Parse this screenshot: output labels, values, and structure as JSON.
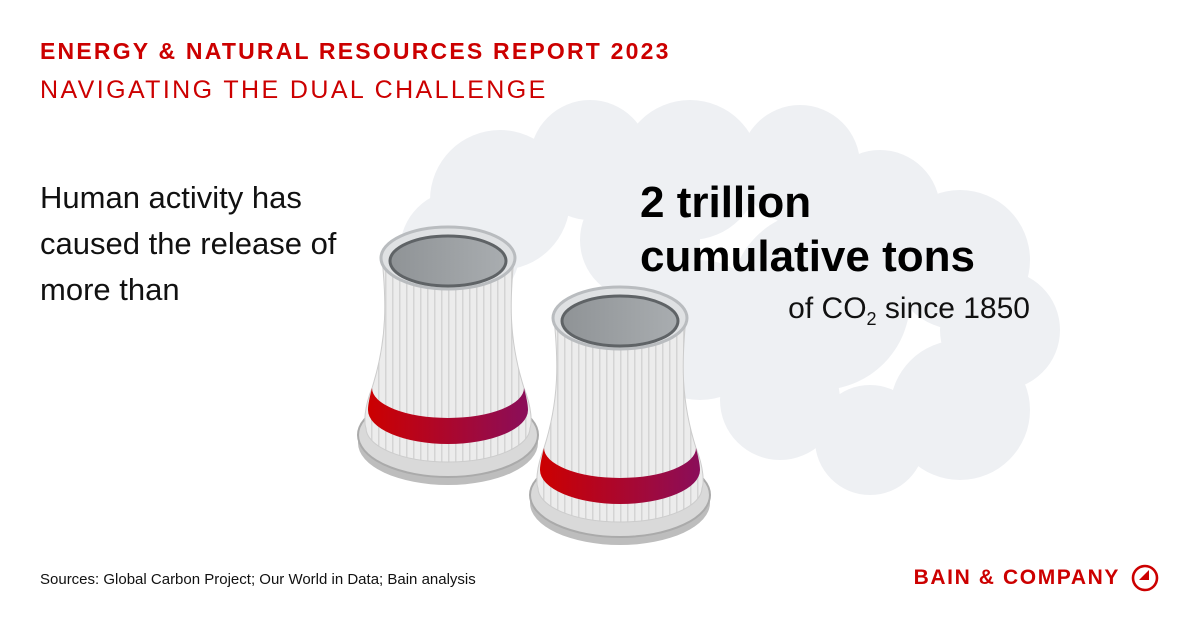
{
  "header": {
    "kicker": "ENERGY & NATURAL RESOURCES REPORT 2023",
    "subtitle": "NAVIGATING THE DUAL CHALLENGE"
  },
  "main": {
    "lead_text": "Human activity has caused the release of more than",
    "headline_line1": "2 trillion",
    "headline_line2": "cumulative tons",
    "unit_prefix": "of CO",
    "unit_subscript": "2",
    "unit_suffix": " since 1850"
  },
  "footer": {
    "sources": "Sources: Global Carbon Project; Our World in Data; Bain analysis",
    "brand": "BAIN & COMPANY"
  },
  "colors": {
    "accent": "#cc0000",
    "band_start": "#cc0000",
    "band_end": "#8a0e5a",
    "cloud": "#eef0f3"
  },
  "icons": [
    "cooling-tower-illustration",
    "smoke-cloud-illustration",
    "bain-logo-icon"
  ]
}
